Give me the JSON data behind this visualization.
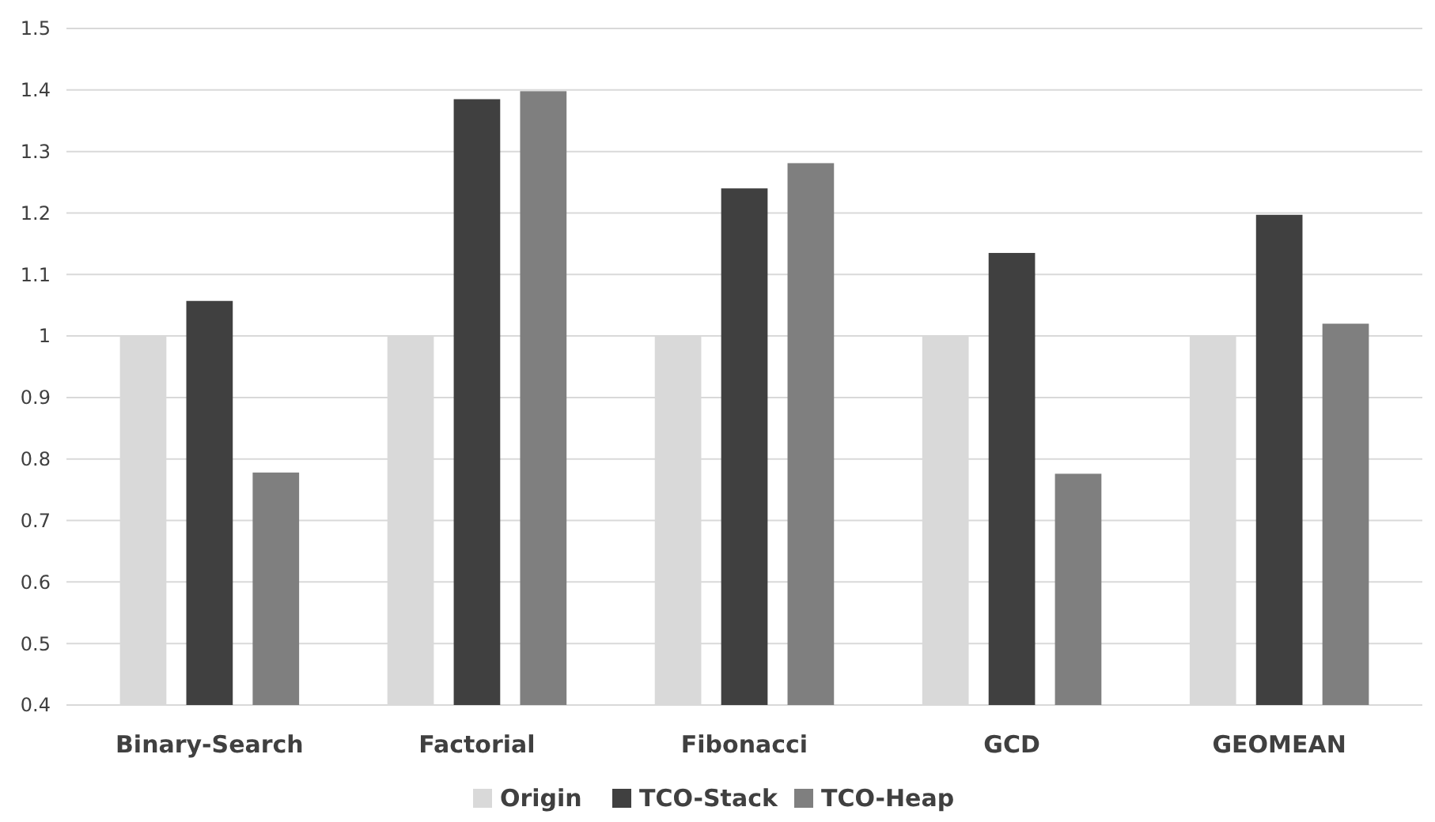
{
  "chart_data": {
    "type": "bar",
    "categories": [
      "Binary-Search",
      "Factorial",
      "Fibonacci",
      "GCD",
      "GEOMEAN"
    ],
    "series": [
      {
        "name": "Origin",
        "color": "#d9d9d9",
        "values": [
          1,
          1,
          1,
          1,
          1
        ]
      },
      {
        "name": "TCO-Stack",
        "color": "#404040",
        "values": [
          1.057,
          1.385,
          1.24,
          1.135,
          1.197
        ]
      },
      {
        "name": "TCO-Heap",
        "color": "#7f7f7f",
        "values": [
          0.778,
          1.398,
          1.281,
          0.776,
          1.02
        ]
      }
    ],
    "ylim": [
      0.4,
      1.5
    ],
    "yticks": [
      0.4,
      0.5,
      0.6,
      0.7,
      0.8,
      0.9,
      1,
      1.1,
      1.2,
      1.3,
      1.4,
      1.5
    ],
    "grid": "y",
    "legend": "bottom"
  }
}
